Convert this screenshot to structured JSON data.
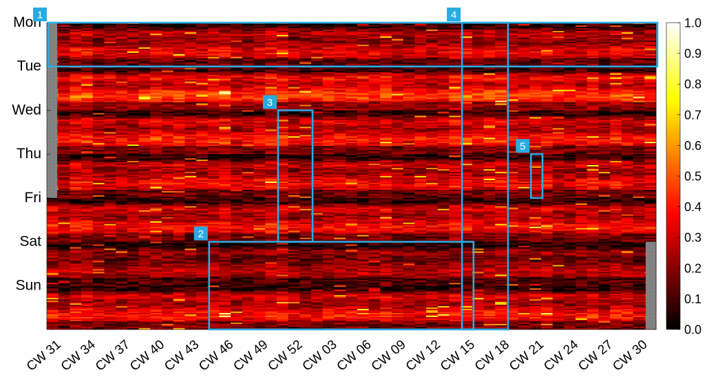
{
  "chart_data": {
    "type": "heatmap",
    "colormap": "hot",
    "y_tick_labels": [
      "Mon",
      "Tue",
      "Wed",
      "Thu",
      "Fri",
      "Sat",
      "Sun"
    ],
    "x_tick_labels": [
      "CW 31",
      "CW 34",
      "CW 37",
      "CW 40",
      "CW 43",
      "CW 46",
      "CW 49",
      "CW 52",
      "CW 03",
      "CW 06",
      "CW 09",
      "CW 12",
      "CW 15",
      "CW 18",
      "CW 21",
      "CW 24",
      "CW 27",
      "CW 30"
    ],
    "colorbar": {
      "range": [
        0.0,
        1.0
      ],
      "tick_labels": [
        "1.0",
        "0.9",
        "0.8",
        "0.7",
        "0.6",
        "0.5",
        "0.4",
        "0.3",
        "0.2",
        "0.1",
        "0.0"
      ]
    },
    "grid": false,
    "day_mean_values": {
      "Mon": 0.28,
      "Tue": 0.38,
      "Wed": 0.33,
      "Thu": 0.3,
      "Fri": 0.31,
      "Sat": 0.22,
      "Sun": 0.32
    },
    "annotations": [
      {
        "label": "1",
        "color": "#29abe2",
        "from_week": "CW 31",
        "to_week": "CW 30",
        "from_time": "Mon",
        "to_time": "Tue"
      },
      {
        "label": "2",
        "color": "#29abe2",
        "from_week": "CW 45",
        "to_week": "CW 14",
        "from_time": "Sat",
        "to_time": "end"
      },
      {
        "label": "3",
        "color": "#29abe2",
        "from_week": "CW 51",
        "to_week": "CW 53",
        "from_time": "Wed",
        "to_time": "Sat"
      },
      {
        "label": "4",
        "color": "#29abe2",
        "from_week": "CW 14",
        "to_week": "CW 17",
        "from_time": "Mon",
        "to_time": "end"
      },
      {
        "label": "5",
        "color": "#29abe2",
        "from_week": "CW 20",
        "to_week": "CW 20",
        "from_time": "Thu",
        "to_time": "Fri"
      }
    ],
    "missing_data_color": "#808080"
  }
}
